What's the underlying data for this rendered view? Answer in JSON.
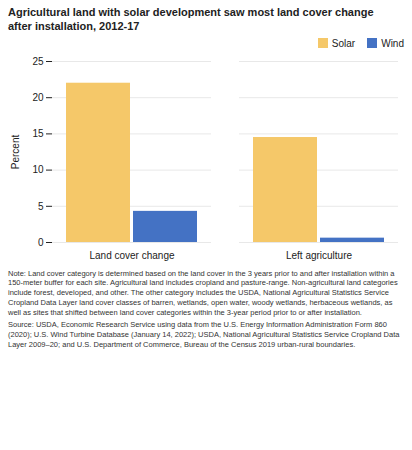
{
  "chart_data": {
    "type": "bar",
    "title": "Agricultural land with solar development saw most land cover change\nafter installation, 2012-17",
    "ylabel": "Percent",
    "categories": [
      "Land cover change",
      "Left agriculture"
    ],
    "series": [
      {
        "name": "Solar",
        "color": "#F5C869",
        "values": [
          22.0,
          14.5
        ]
      },
      {
        "name": "Wind",
        "color": "#4472C4",
        "values": [
          4.3,
          0.6
        ]
      }
    ],
    "ylim": [
      0,
      25
    ],
    "yticks": [
      0,
      5,
      10,
      15,
      20,
      25
    ],
    "grid": true,
    "legend": "upper right",
    "annotations": [
      "Note: Land cover category is determined based on the land cover in the 3 years prior to and after installation within a 150-meter buffer for each site. Agricultural land includes cropland and pasture-range. Non-agricultural land categories include forest, developed, and other. The other category includes the USDA, National Agricultural Statistics Service Cropland Data Layer land cover classes of barren, wetlands, open water, woody wetlands, herbaceous wetlands, as well as sites that shifted between land cover categories within the 3-year period prior to or after installation.",
      "Source: USDA, Economic Research Service using data from the U.S. Energy Information Administration Form 860 (2020); U.S. Wind Turbine Database (January 14, 2022); USDA, National Agricultural Statistics Service Cropland Data Layer 2009–20; and U.S. Department of Commerce, Bureau of the Census 2019 urban-rural boundaries."
    ]
  }
}
